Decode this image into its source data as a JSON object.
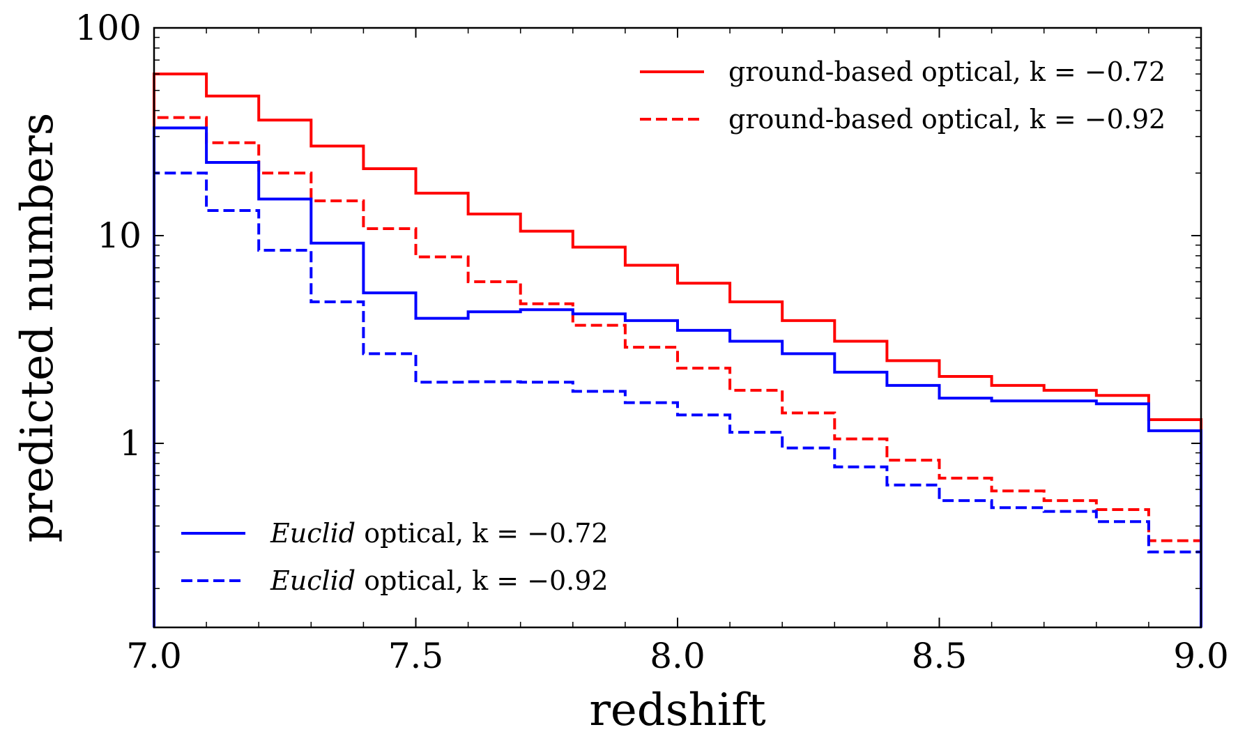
{
  "chart_data": {
    "type": "line",
    "style": "step",
    "title": "",
    "xlabel": "redshift",
    "ylabel": "predicted numbers",
    "xlim": [
      7.0,
      9.0
    ],
    "ylim": [
      0.13,
      100
    ],
    "yscale": "log",
    "xticks": [
      "7.0",
      "7.5",
      "8.0",
      "8.5",
      "9.0"
    ],
    "xtick_values": [
      7.0,
      7.5,
      8.0,
      8.5,
      9.0
    ],
    "yticks": [
      "1",
      "10",
      "100"
    ],
    "ytick_values": [
      1,
      10,
      100
    ],
    "bin_edges": [
      7.0,
      7.1,
      7.2,
      7.3,
      7.4,
      7.5,
      7.6,
      7.7,
      7.8,
      7.9,
      8.0,
      8.1,
      8.2,
      8.3,
      8.4,
      8.5,
      8.6,
      8.7,
      8.8,
      8.9,
      9.0
    ],
    "series": [
      {
        "name_prefix": "ground-based optical",
        "name_suffix": ", k = −0.72",
        "italic_prefix": false,
        "color": "#ff0000",
        "dashed": false,
        "legend_group": "upper",
        "values": [
          60,
          47,
          36,
          27,
          21,
          16,
          12.7,
          10.5,
          8.8,
          7.2,
          5.9,
          4.8,
          3.9,
          3.1,
          2.5,
          2.1,
          1.9,
          1.8,
          1.7,
          1.3
        ]
      },
      {
        "name_prefix": "ground-based optical",
        "name_suffix": ", k = −0.92",
        "italic_prefix": false,
        "color": "#ff0000",
        "dashed": true,
        "legend_group": "upper",
        "values": [
          37,
          28,
          20,
          14.7,
          10.8,
          7.9,
          6.0,
          4.7,
          3.7,
          2.9,
          2.3,
          1.8,
          1.4,
          1.05,
          0.83,
          0.68,
          0.59,
          0.53,
          0.48,
          0.34
        ]
      },
      {
        "name_prefix": "Euclid",
        "name_suffix": " optical, k = −0.72",
        "italic_prefix": true,
        "color": "#0000ff",
        "dashed": false,
        "legend_group": "lower",
        "values": [
          33,
          22.5,
          15,
          9.2,
          5.3,
          4.0,
          4.3,
          4.4,
          4.2,
          3.9,
          3.5,
          3.1,
          2.7,
          2.2,
          1.9,
          1.65,
          1.6,
          1.6,
          1.55,
          1.15
        ]
      },
      {
        "name_prefix": "Euclid",
        "name_suffix": " optical, k = −0.92",
        "italic_prefix": true,
        "color": "#0000ff",
        "dashed": true,
        "legend_group": "lower",
        "values": [
          20,
          13.2,
          8.5,
          4.8,
          2.7,
          1.97,
          1.98,
          1.97,
          1.78,
          1.57,
          1.37,
          1.13,
          0.95,
          0.77,
          0.63,
          0.53,
          0.49,
          0.47,
          0.42,
          0.3
        ]
      }
    ],
    "legend": [
      {
        "location": "top-right",
        "group": "upper"
      },
      {
        "location": "bottom-left",
        "group": "lower"
      }
    ],
    "grid": false
  }
}
